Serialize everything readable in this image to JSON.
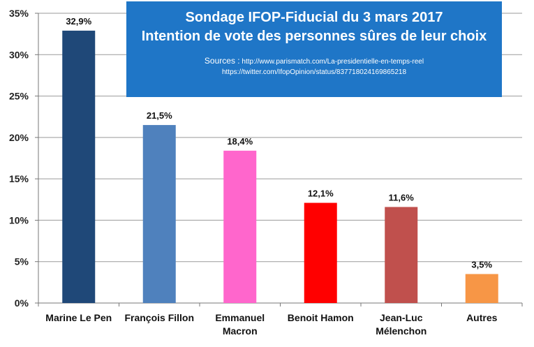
{
  "chart_data": {
    "type": "bar",
    "title": "Sondage IFOP-Fiducial du 3 mars 2017",
    "subtitle": "Intention de vote des personnes sûres de leur choix",
    "sources_label": "Sources :",
    "sources": [
      "http://www.parismatch.com/La-presidentielle-en-temps-reel",
      "https://twitter.com/IfopOpinion/status/837718024169865218"
    ],
    "categories": [
      [
        "Marine Le Pen"
      ],
      [
        "François Fillon"
      ],
      [
        "Emmanuel",
        "Macron"
      ],
      [
        "Benoit Hamon"
      ],
      [
        "Jean-Luc",
        "Mélenchon"
      ],
      [
        "Autres"
      ]
    ],
    "values": [
      32.9,
      21.5,
      18.4,
      12.1,
      11.6,
      3.5
    ],
    "value_labels": [
      "32,9%",
      "21,5%",
      "18,4%",
      "12,1%",
      "11,6%",
      "3,5%"
    ],
    "colors": [
      "#1f4878",
      "#4f81bd",
      "#ff66cc",
      "#ff0000",
      "#c0504d",
      "#f79646"
    ],
    "yticks": [
      0,
      5,
      10,
      15,
      20,
      25,
      30,
      35
    ],
    "ytick_labels": [
      "0%",
      "5%",
      "10%",
      "15%",
      "20%",
      "25%",
      "30%",
      "35%"
    ],
    "ylim": [
      0,
      35
    ],
    "grid": true,
    "xlabel": "",
    "ylabel": ""
  }
}
